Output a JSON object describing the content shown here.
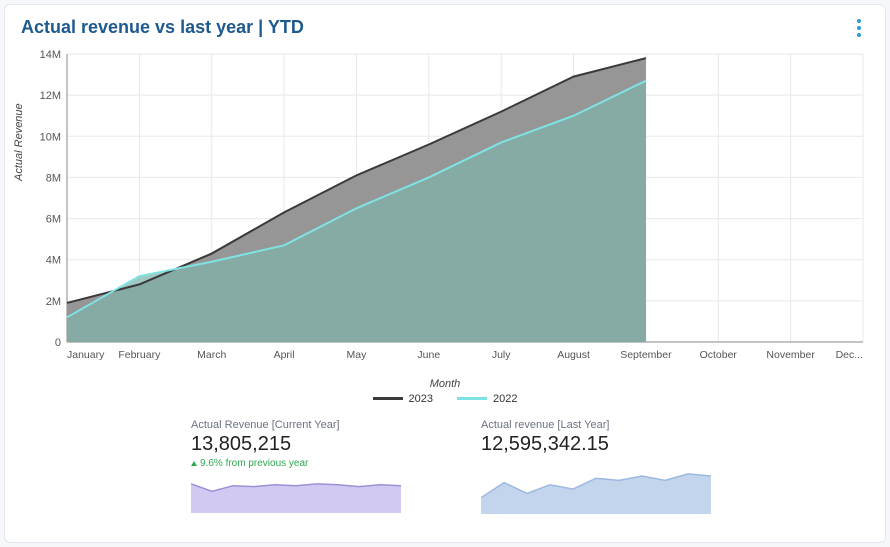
{
  "card": {
    "title": "Actual revenue vs last year | YTD",
    "background_color": "#ffffff",
    "border_color": "#e3e8ee",
    "title_color": "#1e5a8e"
  },
  "chart": {
    "type": "area",
    "y_label": "Actual Revenue",
    "x_label": "Month",
    "x_categories": [
      "January",
      "February",
      "March",
      "April",
      "May",
      "June",
      "July",
      "August",
      "September",
      "October",
      "November",
      "Dec..."
    ],
    "y_ticks": [
      0,
      "2M",
      "4M",
      "6M",
      "8M",
      "10M",
      "12M",
      "14M"
    ],
    "y_max": 14000000,
    "y_min": 0,
    "grid_color": "#e8e8e8",
    "axis_color": "#888888",
    "plot_background": "#ffffff",
    "series": [
      {
        "name": "2023",
        "line_color": "#3a3a3a",
        "fill_color": "#8d8d8d",
        "fill_opacity": 0.92,
        "line_width": 2,
        "values": [
          1900000,
          2800000,
          4300000,
          6300000,
          8100000,
          9600000,
          11200000,
          12900000,
          13800000
        ]
      },
      {
        "name": "2022",
        "line_color": "#7fe3e3",
        "fill_color": "#7fb3ab",
        "fill_opacity": 0.72,
        "line_width": 2,
        "values": [
          1200000,
          3200000,
          3900000,
          4700000,
          6500000,
          8000000,
          9700000,
          11000000,
          12700000
        ]
      }
    ],
    "legend": [
      {
        "label": "2023",
        "color": "#3a3a3a"
      },
      {
        "label": "2022",
        "color": "#7fe3e3"
      }
    ]
  },
  "summary": {
    "current": {
      "label": "Actual Revenue [Current Year]",
      "value": "13,805,215",
      "change_text": "9.6% from previous year",
      "change_color": "#2fa84f",
      "spark_color": "#9f8fd9",
      "spark_fill": "#c9bfee",
      "spark_values": [
        30,
        22,
        28,
        27,
        29,
        28,
        30,
        29,
        27,
        29,
        28
      ]
    },
    "last": {
      "label": "Actual revenue [Last Year]",
      "value": "12,595,342.15",
      "spark_color": "#9db9e0",
      "spark_fill": "#b9cdea",
      "spark_values": [
        14,
        28,
        18,
        26,
        22,
        32,
        30,
        34,
        30,
        36,
        34
      ]
    }
  }
}
